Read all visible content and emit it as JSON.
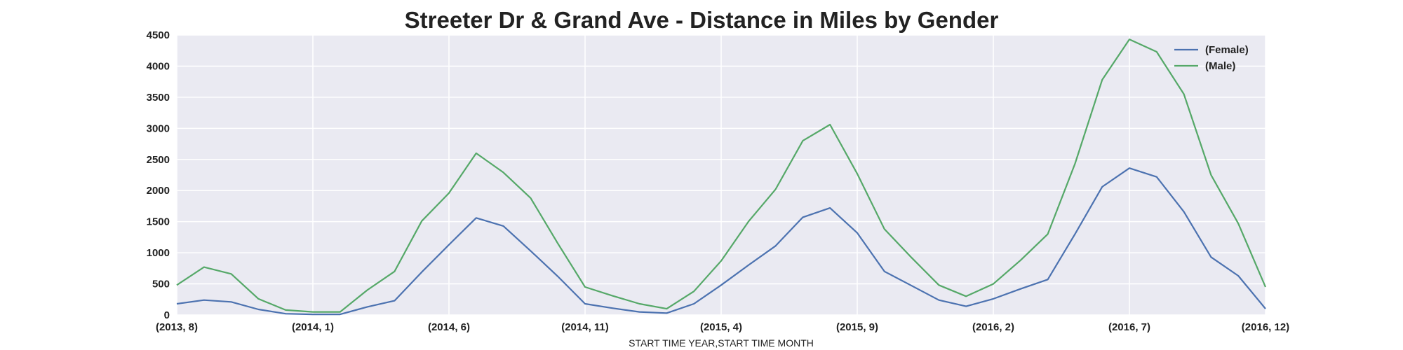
{
  "chart_data": {
    "type": "line",
    "title": "Streeter Dr & Grand Ave - Distance in Miles by Gender",
    "xlabel": "START TIME YEAR,START TIME MONTH",
    "ylabel": "",
    "ylim": [
      0,
      4500
    ],
    "yticks": [
      0,
      500,
      1000,
      1500,
      2000,
      2500,
      3000,
      3500,
      4000,
      4500
    ],
    "x": [
      "(2013, 8)",
      "(2013, 9)",
      "(2013, 10)",
      "(2013, 11)",
      "(2013, 12)",
      "(2014, 1)",
      "(2014, 2)",
      "(2014, 3)",
      "(2014, 4)",
      "(2014, 5)",
      "(2014, 6)",
      "(2014, 7)",
      "(2014, 8)",
      "(2014, 9)",
      "(2014, 10)",
      "(2014, 11)",
      "(2014, 12)",
      "(2015, 1)",
      "(2015, 2)",
      "(2015, 3)",
      "(2015, 4)",
      "(2015, 5)",
      "(2015, 6)",
      "(2015, 7)",
      "(2015, 8)",
      "(2015, 9)",
      "(2015, 10)",
      "(2015, 11)",
      "(2015, 12)",
      "(2016, 1)",
      "(2016, 2)",
      "(2016, 3)",
      "(2016, 4)",
      "(2016, 5)",
      "(2016, 6)",
      "(2016, 7)",
      "(2016, 8)",
      "(2016, 9)",
      "(2016, 10)",
      "(2016, 11)",
      "(2016, 12)"
    ],
    "xtick_labels": [
      "(2013, 8)",
      "(2014, 1)",
      "(2014, 6)",
      "(2014, 11)",
      "(2015, 4)",
      "(2015, 9)",
      "(2016, 2)",
      "(2016, 7)",
      "(2016, 12)"
    ],
    "series": [
      {
        "name": "(Female)",
        "color": "#4c72b0",
        "values": [
          180,
          240,
          210,
          90,
          20,
          10,
          10,
          130,
          230,
          690,
          1130,
          1560,
          1430,
          1030,
          620,
          180,
          110,
          50,
          30,
          180,
          480,
          800,
          1110,
          1570,
          1720,
          1320,
          700,
          470,
          240,
          140,
          260,
          420,
          570,
          1300,
          2060,
          2360,
          2220,
          1660,
          930,
          630,
          100
        ]
      },
      {
        "name": "(Male)",
        "color": "#55a868",
        "values": [
          480,
          770,
          660,
          260,
          80,
          50,
          50,
          400,
          700,
          1510,
          1960,
          2600,
          2290,
          1880,
          1150,
          450,
          310,
          180,
          100,
          380,
          870,
          1500,
          2020,
          2800,
          3060,
          2270,
          1380,
          920,
          480,
          300,
          500,
          880,
          1300,
          2430,
          3780,
          4430,
          4230,
          3550,
          2250,
          1470,
          450
        ]
      }
    ],
    "legend_position": "top-right",
    "grid": true
  }
}
